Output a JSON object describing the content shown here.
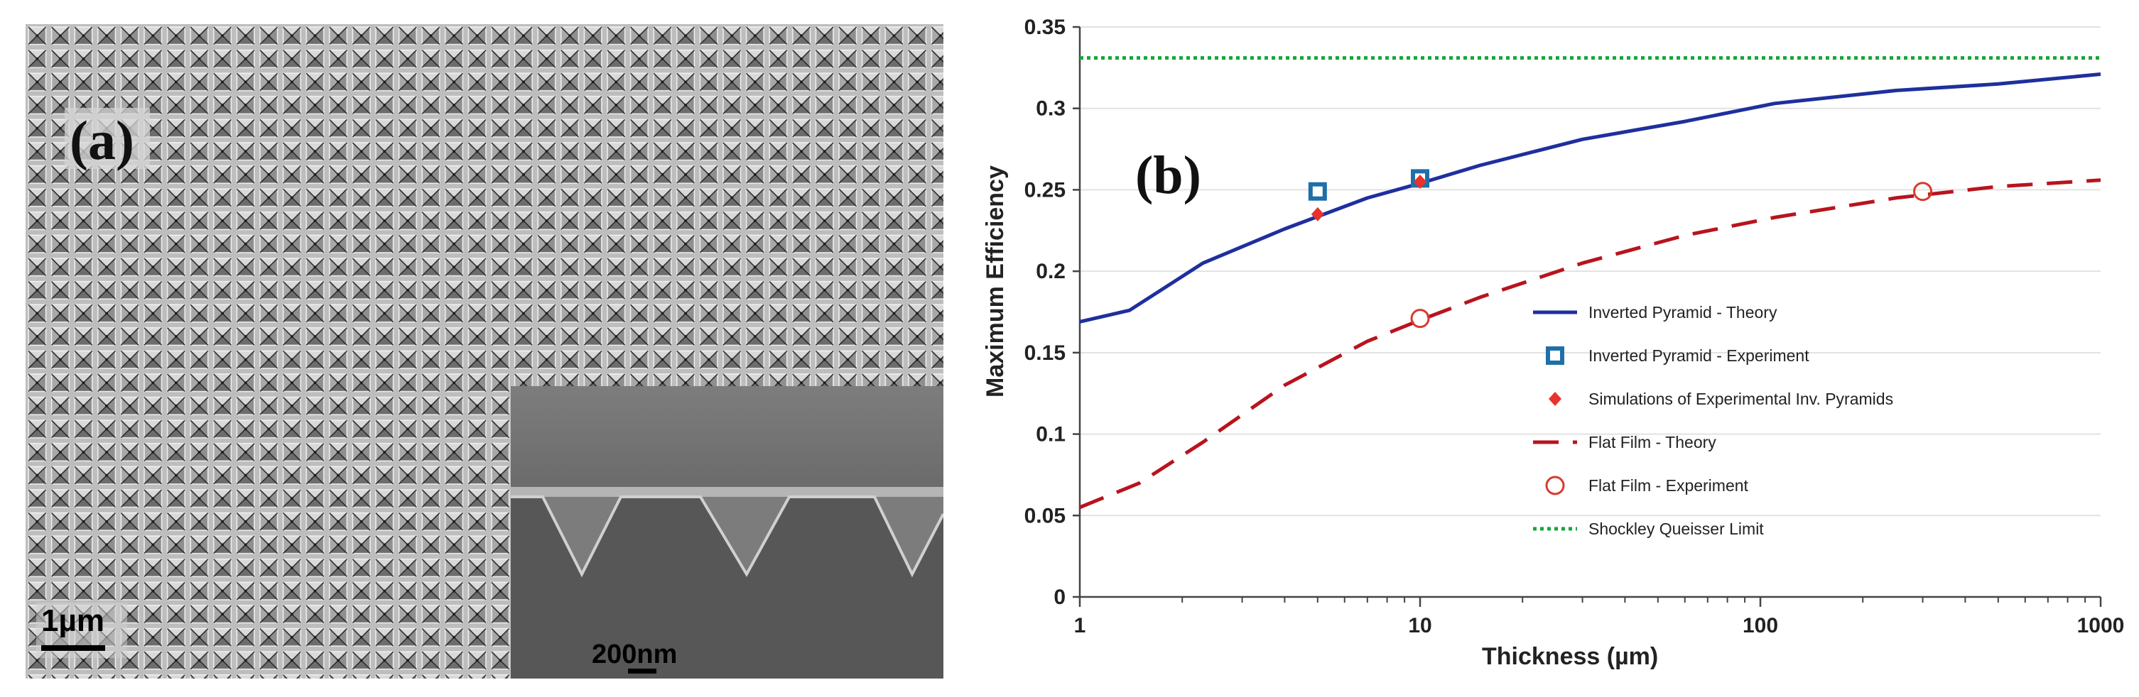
{
  "panels": {
    "a": {
      "label": "(a)",
      "scale_bar_main": "1µm",
      "scale_bar_inset": "200nm"
    },
    "b": {
      "label": "(b)"
    }
  },
  "chart_data": {
    "type": "line",
    "xscale": "log",
    "xlabel": "Thickness (µm)",
    "ylabel": "Maximum Efficiency",
    "xlim": [
      1,
      1000
    ],
    "ylim": [
      0,
      0.35
    ],
    "xticks": [
      1,
      10,
      100,
      1000
    ],
    "xtick_labels": [
      "1",
      "10",
      "100",
      "1000"
    ],
    "yticks": [
      0,
      0.05,
      0.1,
      0.15,
      0.2,
      0.25,
      0.3,
      0.35
    ],
    "ytick_labels": [
      "0",
      "0.05",
      "0.1",
      "0.15",
      "0.2",
      "0.25",
      "0.3",
      "0.35"
    ],
    "series": [
      {
        "name": "Inverted Pyramid - Theory",
        "style": "solid-line",
        "color": "#1f2f9e",
        "x": [
          1,
          1.4,
          2.3,
          4,
          7,
          10,
          15,
          30,
          60,
          110,
          250,
          500,
          1000
        ],
        "y": [
          0.169,
          0.176,
          0.205,
          0.226,
          0.245,
          0.254,
          0.265,
          0.281,
          0.292,
          0.303,
          0.311,
          0.315,
          0.321
        ]
      },
      {
        "name": "Inverted Pyramid - Experiment",
        "style": "open-square",
        "color": "#1f6fa8",
        "x": [
          5,
          10
        ],
        "y": [
          0.249,
          0.257
        ]
      },
      {
        "name": "Simulations of Experimental Inv. Pyramids",
        "style": "filled-diamond",
        "color": "#e8322b",
        "x": [
          5,
          10
        ],
        "y": [
          0.235,
          0.255
        ]
      },
      {
        "name": "Flat Film - Theory",
        "style": "dashed-line",
        "color": "#b8141e",
        "x": [
          1,
          1.5,
          2.3,
          4,
          7,
          10,
          15,
          30,
          60,
          110,
          250,
          500,
          1000
        ],
        "y": [
          0.055,
          0.07,
          0.095,
          0.13,
          0.157,
          0.17,
          0.184,
          0.205,
          0.222,
          0.233,
          0.245,
          0.252,
          0.256
        ]
      },
      {
        "name": "Flat Film - Experiment",
        "style": "open-circle",
        "color": "#d83a2e",
        "x": [
          10,
          300
        ],
        "y": [
          0.171,
          0.249
        ]
      },
      {
        "name": "Shockley Queisser Limit",
        "style": "dotted-line",
        "color": "#19a53a",
        "x": [
          1,
          1000
        ],
        "y": [
          0.331,
          0.331
        ]
      }
    ],
    "legend": {
      "placement": "lower-right",
      "entries": [
        "Inverted Pyramid - Theory",
        "Inverted Pyramid - Experiment",
        "Simulations of Experimental Inv. Pyramids",
        "Flat Film - Theory",
        "Flat Film - Experiment",
        "Shockley Queisser Limit"
      ]
    }
  }
}
